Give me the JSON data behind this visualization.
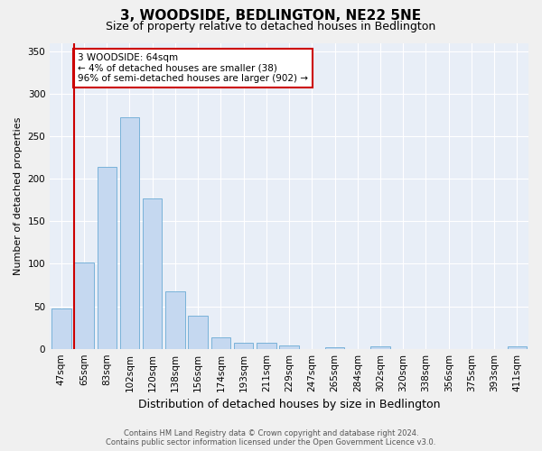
{
  "title": "3, WOODSIDE, BEDLINGTON, NE22 5NE",
  "subtitle": "Size of property relative to detached houses in Bedlington",
  "xlabel": "Distribution of detached houses by size in Bedlington",
  "ylabel": "Number of detached properties",
  "categories": [
    "47sqm",
    "65sqm",
    "83sqm",
    "102sqm",
    "120sqm",
    "138sqm",
    "156sqm",
    "174sqm",
    "193sqm",
    "211sqm",
    "229sqm",
    "247sqm",
    "265sqm",
    "284sqm",
    "302sqm",
    "320sqm",
    "338sqm",
    "356sqm",
    "375sqm",
    "393sqm",
    "411sqm"
  ],
  "values": [
    47,
    102,
    214,
    272,
    177,
    68,
    39,
    13,
    7,
    7,
    4,
    0,
    2,
    0,
    3,
    0,
    0,
    0,
    0,
    0,
    3
  ],
  "bar_color": "#c5d8f0",
  "bar_edge_color": "#6aaad4",
  "highlight_color": "#cc0000",
  "annotation_text": "3 WOODSIDE: 64sqm\n← 4% of detached houses are smaller (38)\n96% of semi-detached houses are larger (902) →",
  "annotation_box_color": "#ffffff",
  "annotation_box_edge": "#cc0000",
  "ylim": [
    0,
    360
  ],
  "yticks": [
    0,
    50,
    100,
    150,
    200,
    250,
    300,
    350
  ],
  "background_color": "#e8eef7",
  "grid_color": "#ffffff",
  "footer_line1": "Contains HM Land Registry data © Crown copyright and database right 2024.",
  "footer_line2": "Contains public sector information licensed under the Open Government Licence v3.0.",
  "title_fontsize": 11,
  "subtitle_fontsize": 9,
  "xlabel_fontsize": 9,
  "ylabel_fontsize": 8,
  "tick_fontsize": 7.5,
  "footer_fontsize": 6
}
